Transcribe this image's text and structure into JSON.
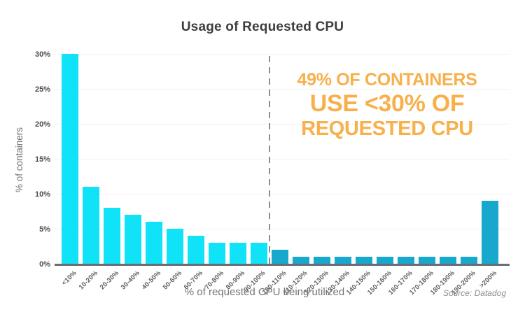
{
  "title": "Usage of Requested CPU",
  "annotation": {
    "line1": "49% OF CONTAINERS",
    "line2": "USE <30% OF",
    "line3": "REQUESTED CPU",
    "color": "#F7B04C"
  },
  "source": "Source: Datadog",
  "chart_data": {
    "type": "bar",
    "categories": [
      "<10%",
      "10-20%",
      "20-30%",
      "30-40%",
      "40-50%",
      "50-60%",
      "60-70%",
      "70-80%",
      "80-90%",
      "90-100%",
      "100-110%",
      "110-120%",
      "120-130%",
      "130-140%",
      "140-150%",
      "150-160%",
      "160-170%",
      "170-180%",
      "180-190%",
      "190-200%",
      ">200%"
    ],
    "values": [
      30,
      11,
      8,
      7,
      6,
      5,
      4,
      3,
      3,
      3,
      2,
      1,
      1,
      1,
      1,
      1,
      1,
      1,
      1,
      1,
      9
    ],
    "title": "Usage of Requested CPU",
    "xlabel": "% of requested CPU being utilized",
    "ylabel": "% of containers",
    "ylim": [
      0,
      30
    ],
    "ytick_step": 5,
    "ytick_labels": [
      "0%",
      "5%",
      "10%",
      "15%",
      "20%",
      "25%",
      "30%"
    ],
    "grid": true,
    "legend": "none",
    "bar_color_below_100": "#10E2F7",
    "bar_color_above_100": "#18A7CD",
    "divider_after_category_index": 9,
    "divider_style": "dashed",
    "divider_color": "#8a8f94"
  }
}
